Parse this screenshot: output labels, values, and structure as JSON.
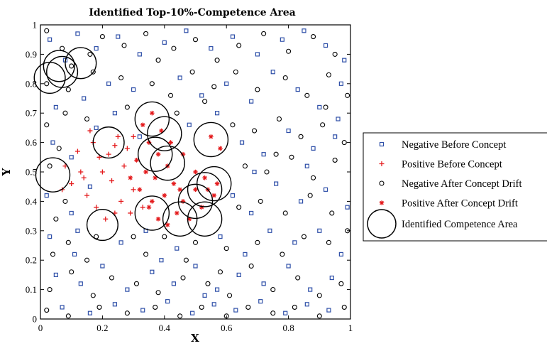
{
  "chart_data": {
    "type": "scatter",
    "title": "Identified Top-10%-Competence Area",
    "xlabel": "X",
    "ylabel": "Y",
    "xlim": [
      0,
      1
    ],
    "ylim": [
      0,
      1
    ],
    "xticks": [
      "0",
      "0.2",
      "0.4",
      "0.6",
      "0.8",
      "1"
    ],
    "yticks": [
      "0",
      "0.1",
      "0.2",
      "0.3",
      "0.4",
      "0.5",
      "0.6",
      "0.7",
      "0.8",
      "0.9",
      "1"
    ],
    "grid": false,
    "legend_position": "right",
    "colors": {
      "negative_before": "#2e4fa8",
      "positive_before": "#e41a1c",
      "negative_after": "#000000",
      "positive_after": "#e41a1c",
      "competence_area": "#000000"
    },
    "series": [
      {
        "name": "Negative Before Concept",
        "marker": "square",
        "points": [
          [
            0.03,
            0.95
          ],
          [
            0.08,
            0.88
          ],
          [
            0.12,
            0.97
          ],
          [
            0.18,
            0.92
          ],
          [
            0.25,
            0.96
          ],
          [
            0.32,
            0.9
          ],
          [
            0.4,
            0.94
          ],
          [
            0.47,
            0.98
          ],
          [
            0.55,
            0.92
          ],
          [
            0.62,
            0.96
          ],
          [
            0.7,
            0.9
          ],
          [
            0.78,
            0.95
          ],
          [
            0.85,
            0.98
          ],
          [
            0.92,
            0.93
          ],
          [
            0.98,
            0.88
          ],
          [
            0.05,
            0.72
          ],
          [
            0.14,
            0.75
          ],
          [
            0.22,
            0.8
          ],
          [
            0.3,
            0.78
          ],
          [
            0.45,
            0.82
          ],
          [
            0.52,
            0.76
          ],
          [
            0.6,
            0.8
          ],
          [
            0.68,
            0.74
          ],
          [
            0.75,
            0.84
          ],
          [
            0.83,
            0.78
          ],
          [
            0.9,
            0.72
          ],
          [
            0.97,
            0.8
          ],
          [
            0.04,
            0.6
          ],
          [
            0.1,
            0.55
          ],
          [
            0.18,
            0.65
          ],
          [
            0.32,
            0.62
          ],
          [
            0.48,
            0.66
          ],
          [
            0.65,
            0.6
          ],
          [
            0.72,
            0.56
          ],
          [
            0.8,
            0.64
          ],
          [
            0.88,
            0.58
          ],
          [
            0.95,
            0.62
          ],
          [
            0.02,
            0.42
          ],
          [
            0.1,
            0.36
          ],
          [
            0.16,
            0.45
          ],
          [
            0.62,
            0.42
          ],
          [
            0.68,
            0.36
          ],
          [
            0.76,
            0.46
          ],
          [
            0.84,
            0.4
          ],
          [
            0.92,
            0.44
          ],
          [
            0.99,
            0.38
          ],
          [
            0.03,
            0.28
          ],
          [
            0.12,
            0.3
          ],
          [
            0.26,
            0.26
          ],
          [
            0.34,
            0.3
          ],
          [
            0.44,
            0.24
          ],
          [
            0.58,
            0.28
          ],
          [
            0.66,
            0.22
          ],
          [
            0.74,
            0.3
          ],
          [
            0.82,
            0.26
          ],
          [
            0.9,
            0.3
          ],
          [
            0.97,
            0.22
          ],
          [
            0.05,
            0.15
          ],
          [
            0.13,
            0.12
          ],
          [
            0.2,
            0.18
          ],
          [
            0.28,
            0.1
          ],
          [
            0.36,
            0.16
          ],
          [
            0.43,
            0.12
          ],
          [
            0.5,
            0.18
          ],
          [
            0.57,
            0.1
          ],
          [
            0.64,
            0.15
          ],
          [
            0.72,
            0.12
          ],
          [
            0.8,
            0.18
          ],
          [
            0.87,
            0.1
          ],
          [
            0.94,
            0.14
          ],
          [
            0.07,
            0.04
          ],
          [
            0.16,
            0.02
          ],
          [
            0.24,
            0.05
          ],
          [
            0.33,
            0.03
          ],
          [
            0.41,
            0.06
          ],
          [
            0.49,
            0.02
          ],
          [
            0.56,
            0.05
          ],
          [
            0.63,
            0.03
          ],
          [
            0.71,
            0.06
          ],
          [
            0.79,
            0.02
          ],
          [
            0.86,
            0.05
          ],
          [
            0.93,
            0.03
          ],
          [
            0.11,
            0.22
          ],
          [
            0.39,
            0.2
          ],
          [
            0.53,
            0.08
          ],
          [
            0.69,
            0.5
          ],
          [
            0.86,
            0.52
          ],
          [
            0.96,
            0.68
          ],
          [
            0.57,
            0.7
          ],
          [
            0.24,
            0.7
          ]
        ]
      },
      {
        "name": "Positive Before Concept",
        "marker": "plus",
        "points": [
          [
            0.08,
            0.52
          ],
          [
            0.1,
            0.46
          ],
          [
            0.13,
            0.5
          ],
          [
            0.15,
            0.42
          ],
          [
            0.07,
            0.44
          ],
          [
            0.12,
            0.57
          ],
          [
            0.17,
            0.6
          ],
          [
            0.22,
            0.56
          ],
          [
            0.25,
            0.62
          ],
          [
            0.28,
            0.58
          ],
          [
            0.2,
            0.5
          ],
          [
            0.23,
            0.47
          ],
          [
            0.26,
            0.4
          ],
          [
            0.3,
            0.44
          ],
          [
            0.33,
            0.38
          ],
          [
            0.27,
            0.52
          ],
          [
            0.18,
            0.38
          ],
          [
            0.21,
            0.34
          ],
          [
            0.24,
            0.36
          ],
          [
            0.16,
            0.64
          ],
          [
            0.3,
            0.62
          ],
          [
            0.19,
            0.55
          ],
          [
            0.24,
            0.59
          ],
          [
            0.14,
            0.48
          ],
          [
            0.29,
            0.36
          ]
        ]
      },
      {
        "name": "Negative After Concept Drift",
        "marker": "circle",
        "points": [
          [
            0.02,
            0.98
          ],
          [
            0.07,
            0.92
          ],
          [
            0.1,
            0.86
          ],
          [
            0.16,
            0.9
          ],
          [
            0.2,
            0.96
          ],
          [
            0.27,
            0.93
          ],
          [
            0.34,
            0.97
          ],
          [
            0.38,
            0.88
          ],
          [
            0.43,
            0.92
          ],
          [
            0.5,
            0.95
          ],
          [
            0.57,
            0.88
          ],
          [
            0.64,
            0.93
          ],
          [
            0.72,
            0.97
          ],
          [
            0.8,
            0.91
          ],
          [
            0.88,
            0.96
          ],
          [
            0.95,
            0.9
          ],
          [
            0.02,
            0.8
          ],
          [
            0.09,
            0.78
          ],
          [
            0.17,
            0.84
          ],
          [
            0.26,
            0.82
          ],
          [
            0.36,
            0.8
          ],
          [
            0.42,
            0.76
          ],
          [
            0.49,
            0.84
          ],
          [
            0.56,
            0.79
          ],
          [
            0.63,
            0.84
          ],
          [
            0.7,
            0.78
          ],
          [
            0.79,
            0.82
          ],
          [
            0.86,
            0.76
          ],
          [
            0.93,
            0.83
          ],
          [
            0.99,
            0.76
          ],
          [
            0.02,
            0.66
          ],
          [
            0.08,
            0.7
          ],
          [
            0.15,
            0.68
          ],
          [
            0.28,
            0.72
          ],
          [
            0.44,
            0.7
          ],
          [
            0.62,
            0.66
          ],
          [
            0.69,
            0.64
          ],
          [
            0.77,
            0.68
          ],
          [
            0.84,
            0.62
          ],
          [
            0.91,
            0.66
          ],
          [
            0.98,
            0.6
          ],
          [
            0.03,
            0.52
          ],
          [
            0.06,
            0.58
          ],
          [
            0.66,
            0.52
          ],
          [
            0.73,
            0.5
          ],
          [
            0.81,
            0.55
          ],
          [
            0.88,
            0.48
          ],
          [
            0.95,
            0.54
          ],
          [
            0.05,
            0.34
          ],
          [
            0.08,
            0.4
          ],
          [
            0.64,
            0.38
          ],
          [
            0.71,
            0.4
          ],
          [
            0.79,
            0.36
          ],
          [
            0.87,
            0.42
          ],
          [
            0.94,
            0.36
          ],
          [
            0.04,
            0.22
          ],
          [
            0.09,
            0.26
          ],
          [
            0.18,
            0.28
          ],
          [
            0.3,
            0.28
          ],
          [
            0.4,
            0.28
          ],
          [
            0.5,
            0.26
          ],
          [
            0.6,
            0.24
          ],
          [
            0.7,
            0.26
          ],
          [
            0.78,
            0.22
          ],
          [
            0.85,
            0.28
          ],
          [
            0.93,
            0.26
          ],
          [
            0.99,
            0.3
          ],
          [
            0.03,
            0.1
          ],
          [
            0.1,
            0.16
          ],
          [
            0.17,
            0.08
          ],
          [
            0.23,
            0.14
          ],
          [
            0.31,
            0.12
          ],
          [
            0.38,
            0.09
          ],
          [
            0.46,
            0.14
          ],
          [
            0.54,
            0.12
          ],
          [
            0.61,
            0.08
          ],
          [
            0.68,
            0.18
          ],
          [
            0.75,
            0.1
          ],
          [
            0.83,
            0.14
          ],
          [
            0.9,
            0.08
          ],
          [
            0.97,
            0.12
          ],
          [
            0.02,
            0.03
          ],
          [
            0.09,
            0.01
          ],
          [
            0.19,
            0.04
          ],
          [
            0.28,
            0.02
          ],
          [
            0.37,
            0.04
          ],
          [
            0.45,
            0.01
          ],
          [
            0.52,
            0.04
          ],
          [
            0.6,
            0.01
          ],
          [
            0.67,
            0.04
          ],
          [
            0.75,
            0.02
          ],
          [
            0.82,
            0.04
          ],
          [
            0.9,
            0.01
          ],
          [
            0.98,
            0.04
          ],
          [
            0.15,
            0.2
          ],
          [
            0.34,
            0.22
          ],
          [
            0.47,
            0.2
          ],
          [
            0.58,
            0.16
          ],
          [
            0.76,
            0.56
          ],
          [
            0.92,
            0.72
          ],
          [
            0.53,
            0.74
          ]
        ]
      },
      {
        "name": "Positive After Concept Drift",
        "marker": "star",
        "points": [
          [
            0.33,
            0.66
          ],
          [
            0.36,
            0.7
          ],
          [
            0.39,
            0.64
          ],
          [
            0.35,
            0.6
          ],
          [
            0.38,
            0.56
          ],
          [
            0.41,
            0.52
          ],
          [
            0.37,
            0.48
          ],
          [
            0.34,
            0.5
          ],
          [
            0.32,
            0.44
          ],
          [
            0.36,
            0.4
          ],
          [
            0.4,
            0.42
          ],
          [
            0.43,
            0.46
          ],
          [
            0.46,
            0.4
          ],
          [
            0.5,
            0.44
          ],
          [
            0.53,
            0.48
          ],
          [
            0.56,
            0.42
          ],
          [
            0.52,
            0.38
          ],
          [
            0.48,
            0.34
          ],
          [
            0.44,
            0.36
          ],
          [
            0.41,
            0.32
          ],
          [
            0.38,
            0.34
          ],
          [
            0.35,
            0.38
          ],
          [
            0.29,
            0.48
          ],
          [
            0.31,
            0.54
          ],
          [
            0.42,
            0.6
          ],
          [
            0.46,
            0.56
          ],
          [
            0.55,
            0.62
          ],
          [
            0.58,
            0.58
          ],
          [
            0.57,
            0.46
          ],
          [
            0.5,
            0.5
          ],
          [
            0.45,
            0.44
          ],
          [
            0.54,
            0.44
          ]
        ]
      }
    ],
    "competence_areas": [
      {
        "x": 0.03,
        "y": 0.82,
        "r": 0.05
      },
      {
        "x": 0.07,
        "y": 0.84,
        "r": 0.05
      },
      {
        "x": 0.06,
        "y": 0.86,
        "r": 0.05
      },
      {
        "x": 0.13,
        "y": 0.87,
        "r": 0.05
      },
      {
        "x": 0.22,
        "y": 0.6,
        "r": 0.05
      },
      {
        "x": 0.36,
        "y": 0.68,
        "r": 0.055
      },
      {
        "x": 0.4,
        "y": 0.63,
        "r": 0.055
      },
      {
        "x": 0.37,
        "y": 0.56,
        "r": 0.055
      },
      {
        "x": 0.41,
        "y": 0.53,
        "r": 0.055
      },
      {
        "x": 0.55,
        "y": 0.61,
        "r": 0.055
      },
      {
        "x": 0.04,
        "y": 0.49,
        "r": 0.055
      },
      {
        "x": 0.53,
        "y": 0.44,
        "r": 0.055
      },
      {
        "x": 0.56,
        "y": 0.46,
        "r": 0.055
      },
      {
        "x": 0.5,
        "y": 0.4,
        "r": 0.055
      },
      {
        "x": 0.53,
        "y": 0.34,
        "r": 0.055
      },
      {
        "x": 0.36,
        "y": 0.36,
        "r": 0.055
      },
      {
        "x": 0.45,
        "y": 0.34,
        "r": 0.055
      },
      {
        "x": 0.2,
        "y": 0.32,
        "r": 0.05
      }
    ],
    "legend": [
      {
        "label": "Negative Before Concept",
        "marker": "square"
      },
      {
        "label": "Positive Before Concept",
        "marker": "plus"
      },
      {
        "label": "Negative After Concept Drift",
        "marker": "circle"
      },
      {
        "label": "Positive After Concept Drift",
        "marker": "star"
      },
      {
        "label": "Identified Competence Area",
        "marker": "big-circle"
      }
    ]
  }
}
